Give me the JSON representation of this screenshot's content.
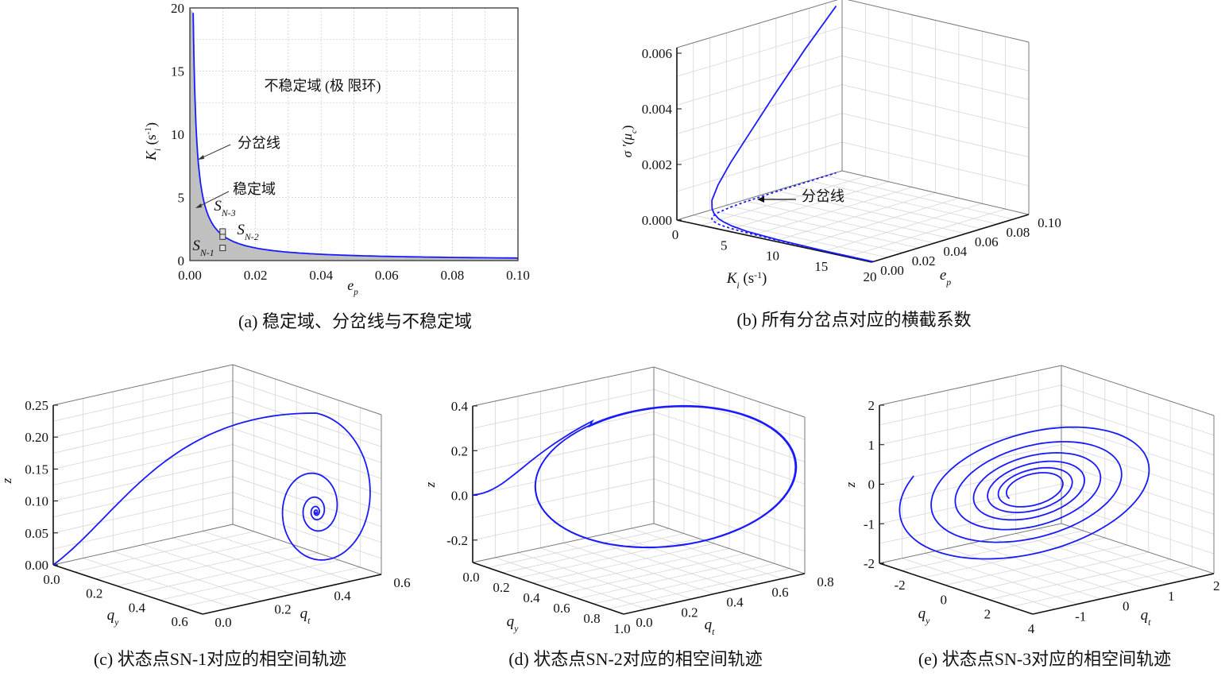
{
  "colors": {
    "curve": "#1a1aff",
    "stable_fill": "#c0c0c0",
    "grid": "#cfcfcf"
  },
  "chart_data": [
    {
      "id": "a",
      "type": "area",
      "caption": "(a) 稳定域、分岔线与不稳定域",
      "xlabel": [
        [
          "e",
          "it"
        ],
        [
          "p",
          "sub"
        ]
      ],
      "ylabel": [
        [
          "K",
          "it"
        ],
        [
          "i",
          "sub"
        ],
        [
          " (s",
          ""
        ],
        [
          "-1",
          "sup"
        ],
        [
          ")",
          ""
        ]
      ],
      "xlim": [
        0,
        0.1
      ],
      "ylim": [
        0,
        20
      ],
      "xticks": [
        "0.00",
        "0.02",
        "0.04",
        "0.06",
        "0.08",
        "0.10"
      ],
      "yticks": [
        "0",
        "5",
        "10",
        "15",
        "20"
      ],
      "grid": true,
      "series": [
        {
          "x": [
            0.001,
            0.0015,
            0.002,
            0.003,
            0.004,
            0.005,
            0.0065,
            0.008,
            0.01,
            0.0125,
            0.015,
            0.02,
            0.03,
            0.04,
            0.05,
            0.06,
            0.07,
            0.08,
            0.09,
            0.1
          ],
          "y": [
            20,
            13.3,
            10,
            6.67,
            5,
            4,
            3.08,
            2.5,
            2,
            1.6,
            1.33,
            1,
            0.67,
            0.5,
            0.4,
            0.33,
            0.29,
            0.25,
            0.22,
            0.2
          ]
        }
      ],
      "points": [
        {
          "label": [
            [
              "S",
              "it"
            ],
            [
              "N-1",
              "sub"
            ]
          ],
          "x": 0.01,
          "y": 1.0
        },
        {
          "label": [
            [
              "S",
              "it"
            ],
            [
              "N-2",
              "sub"
            ]
          ],
          "x": 0.01,
          "y": 1.9
        },
        {
          "label": [
            [
              "S",
              "it"
            ],
            [
              "N-3",
              "sub"
            ]
          ],
          "x": 0.01,
          "y": 2.3
        }
      ],
      "annotations": {
        "unstable": "不稳定域 (极 限环)",
        "bifurcation": "分岔线",
        "stable": "稳定域"
      }
    },
    {
      "id": "b",
      "type": "line3d",
      "caption": "(b) 所有分岔点对应的横截系数",
      "xlabel": [
        [
          "K",
          "it"
        ],
        [
          "i",
          "sub"
        ],
        [
          " (s",
          ""
        ],
        [
          "-1",
          "sup"
        ],
        [
          ")",
          ""
        ]
      ],
      "ylabel": [
        [
          "e",
          "it"
        ],
        [
          "p",
          "sub"
        ]
      ],
      "zlabel": [
        [
          "σ '(μ",
          "it"
        ],
        [
          "c",
          "sub"
        ],
        [
          ")",
          ""
        ]
      ],
      "xlim": [
        0,
        20
      ],
      "ylim": [
        0,
        0.1
      ],
      "zlim": [
        0,
        0.0062
      ],
      "xticks": [
        "0",
        "5",
        "10",
        "15",
        "20"
      ],
      "yticks": [
        "0.00",
        "0.02",
        "0.04",
        "0.06",
        "0.08",
        "0.10"
      ],
      "zticks": [
        "0.000",
        "0.002",
        "0.004",
        "0.006"
      ],
      "series": [
        {
          "Ki": [
            20,
            15,
            10,
            6.7,
            5,
            4,
            3.3,
            2.5,
            2,
            1.5,
            1,
            0.67,
            0.5,
            0.33,
            0.25,
            0.2
          ],
          "ep": [
            0.001,
            0.0013,
            0.002,
            0.003,
            0.004,
            0.005,
            0.006,
            0.008,
            0.01,
            0.013,
            0.02,
            0.03,
            0.04,
            0.06,
            0.08,
            0.1
          ],
          "sigma": [
            0,
            0,
            2e-05,
            5e-05,
            0.0001,
            0.00015,
            0.0002,
            0.0003,
            0.0004,
            0.0006,
            0.001,
            0.0016,
            0.0022,
            0.0035,
            0.0048,
            0.006
          ]
        }
      ],
      "annotations": {
        "bifurcation": "分岔线"
      }
    },
    {
      "id": "c",
      "type": "line3d",
      "caption": "(c) 状态点SN-1对应的相空间轨迹",
      "xlabel": [
        [
          "q",
          "it"
        ],
        [
          "y",
          "sub"
        ]
      ],
      "ylabel": [
        [
          "q",
          "it"
        ],
        [
          "t",
          "sub"
        ]
      ],
      "zlabel": [
        [
          "z",
          "it"
        ]
      ],
      "xlim": [
        0,
        0.7
      ],
      "ylim": [
        0,
        0.6
      ],
      "zlim": [
        0,
        0.25
      ],
      "xticks": [
        "0.0",
        "0.2",
        "0.4",
        "0.6"
      ],
      "yticks": [
        "0.0",
        "0.2",
        "0.4",
        "0.6"
      ],
      "zticks": [
        "0.00",
        "0.05",
        "0.10",
        "0.15",
        "0.20",
        "0.25"
      ]
    },
    {
      "id": "d",
      "type": "line3d",
      "caption": "(d) 状态点SN-2对应的相空间轨迹",
      "xlabel": [
        [
          "q",
          "it"
        ],
        [
          "y",
          "sub"
        ]
      ],
      "ylabel": [
        [
          "q",
          "it"
        ],
        [
          "t",
          "sub"
        ]
      ],
      "zlabel": [
        [
          "z",
          "it"
        ]
      ],
      "xlim": [
        0,
        1.0
      ],
      "ylim": [
        0,
        0.8
      ],
      "zlim": [
        -0.3,
        0.4
      ],
      "xticks": [
        "0.0",
        "0.2",
        "0.4",
        "0.6",
        "0.8",
        "1.0"
      ],
      "yticks": [
        "0.0",
        "0.2",
        "0.4",
        "0.6",
        "0.8"
      ],
      "zticks": [
        "-0.2",
        "0.0",
        "0.2",
        "0.4"
      ]
    },
    {
      "id": "e",
      "type": "line3d",
      "caption": "(e) 状态点SN-3对应的相空间轨迹",
      "xlabel": [
        [
          "q",
          "it"
        ],
        [
          "y",
          "sub"
        ]
      ],
      "ylabel": [
        [
          "q",
          "it"
        ],
        [
          "t",
          "sub"
        ]
      ],
      "zlabel": [
        [
          "z",
          "it"
        ]
      ],
      "xlim": [
        -3,
        4
      ],
      "ylim": [
        -1.6,
        2.4
      ],
      "zlim": [
        -2,
        2
      ],
      "xticks": [
        "-2",
        "0",
        "2",
        "4"
      ],
      "yticks": [
        "-1",
        "0",
        "1",
        "2"
      ],
      "zticks": [
        "-2",
        "-1",
        "0",
        "1",
        "2"
      ]
    }
  ]
}
